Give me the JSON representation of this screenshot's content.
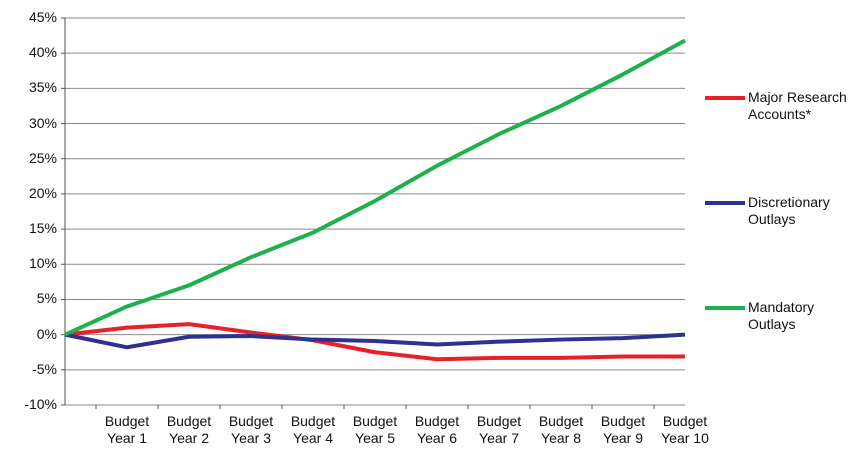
{
  "chart_data": {
    "type": "line",
    "categories": [
      null,
      "Budget Year 1",
      "Budget Year 2",
      "Budget Year 3",
      "Budget Year 4",
      "Budget Year 5",
      "Budget Year 6",
      "Budget Year 7",
      "Budget Year 8",
      "Budget Year 9",
      "Budget Year 10"
    ],
    "series": [
      {
        "name": "Major Research Accounts*",
        "color": "#e8202a",
        "values": [
          0,
          1,
          1.5,
          0.3,
          -0.8,
          -2.5,
          -3.5,
          -3.3,
          -3.3,
          -3.1,
          -3.1
        ]
      },
      {
        "name": "Discretionary Outlays",
        "color": "#2e3192",
        "values": [
          0,
          -1.8,
          -0.3,
          -0.2,
          -0.7,
          -0.9,
          -1.4,
          -1,
          -0.7,
          -0.5,
          0
        ]
      },
      {
        "name": "Mandatory Outlays",
        "color": "#1db04b",
        "values": [
          0,
          4,
          7,
          11,
          14.5,
          19,
          24,
          28.5,
          32.5,
          37,
          41.8
        ]
      }
    ],
    "ylim": [
      -10,
      45
    ],
    "yticks": [
      {
        "value": -10,
        "label": "-10%"
      },
      {
        "value": -5,
        "label": "-5%"
      },
      {
        "value": 0,
        "label": "0%"
      },
      {
        "value": 5,
        "label": "5%"
      },
      {
        "value": 10,
        "label": "10%"
      },
      {
        "value": 15,
        "label": "15%"
      },
      {
        "value": 20,
        "label": "20%"
      },
      {
        "value": 25,
        "label": "25%"
      },
      {
        "value": 30,
        "label": "30%"
      },
      {
        "value": 35,
        "label": "35%"
      },
      {
        "value": 40,
        "label": "40%"
      },
      {
        "value": 45,
        "label": "45%"
      }
    ],
    "grid": true,
    "legend": "right"
  }
}
